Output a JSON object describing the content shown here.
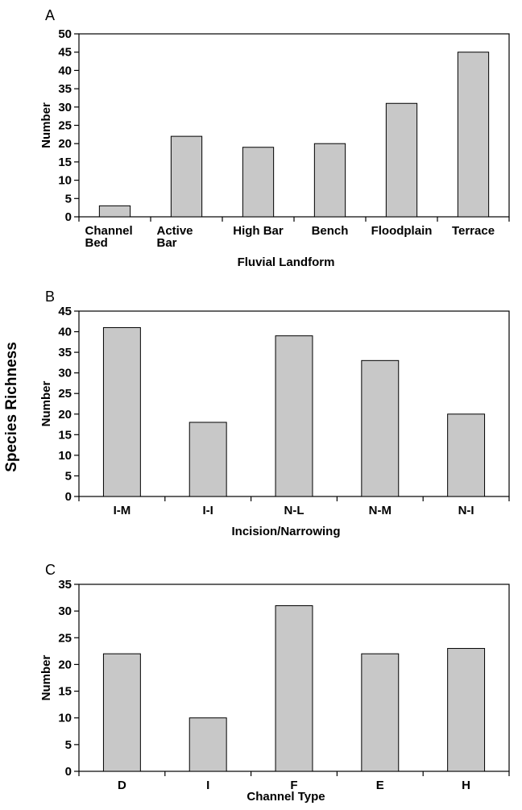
{
  "figure": {
    "shared_ylabel": "Species Richness"
  },
  "chart_data": [
    {
      "panel": "A",
      "type": "bar",
      "categories": [
        [
          "Channel",
          "Bed"
        ],
        [
          "Active",
          "Bar"
        ],
        [
          "High Bar"
        ],
        [
          "Bench"
        ],
        [
          "Floodplain"
        ],
        [
          "Terrace"
        ]
      ],
      "values": [
        3,
        22,
        19,
        20,
        31,
        45
      ],
      "xlabel": "Fluvial Landform",
      "ylabel": "Number",
      "ylim": [
        0,
        50
      ],
      "yticks": [
        0,
        5,
        10,
        15,
        20,
        25,
        30,
        35,
        40,
        45,
        50
      ],
      "bar_color": "#c8c8c8"
    },
    {
      "panel": "B",
      "type": "bar",
      "categories": [
        [
          "I-M"
        ],
        [
          "I-I"
        ],
        [
          "N-L"
        ],
        [
          "N-M"
        ],
        [
          "N-I"
        ]
      ],
      "values": [
        41,
        18,
        39,
        33,
        20
      ],
      "xlabel": "Incision/Narrowing",
      "ylabel": "Number",
      "ylim": [
        0,
        45
      ],
      "yticks": [
        0,
        5,
        10,
        15,
        20,
        25,
        30,
        35,
        40,
        45
      ],
      "bar_color": "#c8c8c8"
    },
    {
      "panel": "C",
      "type": "bar",
      "categories": [
        [
          "D"
        ],
        [
          "I"
        ],
        [
          "F"
        ],
        [
          "E"
        ],
        [
          "H"
        ]
      ],
      "values": [
        22,
        10,
        31,
        22,
        23
      ],
      "xlabel": "Channel Type",
      "ylabel": "Number",
      "ylim": [
        0,
        35
      ],
      "yticks": [
        0,
        5,
        10,
        15,
        20,
        25,
        30,
        35
      ],
      "bar_color": "#c8c8c8"
    }
  ]
}
